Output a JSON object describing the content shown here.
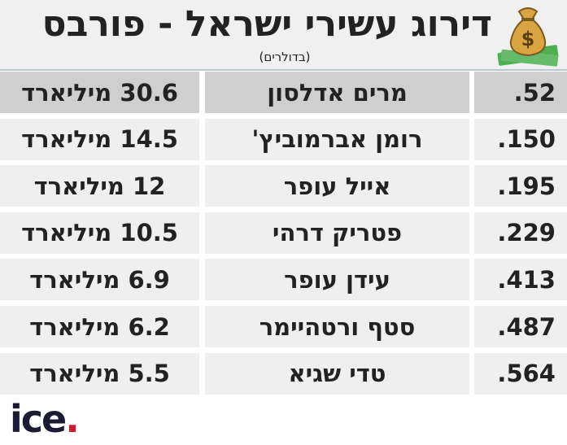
{
  "header": {
    "title": "דירוג עשירי ישראל - פורבס",
    "subtitle": "(בדולרים)"
  },
  "table": {
    "rows": [
      {
        "rank": "52.",
        "name": "מרים אדלסון",
        "wealth": "30.6 מיליארד"
      },
      {
        "rank": "150.",
        "name": "רומן אברמוביץ'",
        "wealth": "14.5 מיליארד"
      },
      {
        "rank": "195.",
        "name": "אייל עופר",
        "wealth": "12 מיליארד"
      },
      {
        "rank": "229.",
        "name": "פטריק דרהי",
        "wealth": "10.5 מיליארד"
      },
      {
        "rank": "413.",
        "name": "עידן עופר",
        "wealth": "6.9 מיליארד"
      },
      {
        "rank": "487.",
        "name": "סטף ורטהיימר",
        "wealth": "6.2 מיליארד"
      },
      {
        "rank": "564.",
        "name": "טדי שגיא",
        "wealth": "5.5 מיליארד"
      }
    ]
  },
  "logo": {
    "name": "ice",
    "mark": "."
  }
}
